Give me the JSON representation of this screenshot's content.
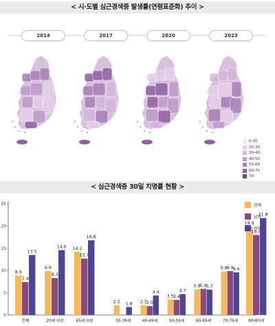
{
  "titles": {
    "map_title": "< 시·도별 심근경색증 발생률(연령표준화) 추이 >",
    "chart_title": "< 심근경색증 30일 치명률 현황 >"
  },
  "maps": {
    "years": [
      "2014",
      "2017",
      "2020",
      "2023"
    ],
    "legend": [
      {
        "label": "0-20",
        "color": "#f1e7f3"
      },
      {
        "label": "20-30",
        "color": "#e3cfe7"
      },
      {
        "label": "30-40",
        "color": "#d3b6da"
      },
      {
        "label": "40-50",
        "color": "#bf9bc9"
      },
      {
        "label": "50-60",
        "color": "#a87fb6"
      },
      {
        "label": "60-70",
        "color": "#8e61a0"
      },
      {
        "label": "70-",
        "color": "#6f4183"
      }
    ]
  },
  "colors": {
    "total": "#f5b95a",
    "male": "#8b4a7e",
    "female": "#4b4795"
  },
  "chart_data": {
    "type": "bar",
    "categories": [
      "전체",
      "20세 이상",
      "65세 이상",
      "30-39세",
      "40-49세",
      "50-59세",
      "60-69세",
      "70-79세",
      "80세이상"
    ],
    "series": [
      {
        "name": "전체",
        "values": [
          8.9,
          9.9,
          14.2,
          2.2,
          2.2,
          3.5,
          5.8,
          9.8,
          19.9
        ]
      },
      {
        "name": "남자",
        "values": [
          7.4,
          8.3,
          12.7,
          null,
          2.0,
          3.4,
          5.9,
          9.9,
          18.0
        ]
      },
      {
        "name": "여자",
        "values": [
          13.5,
          14.6,
          16.8,
          1.8,
          4.4,
          4.7,
          5.7,
          9.6,
          21.8
        ]
      }
    ],
    "value_labels": [
      [
        "8.9",
        "9.9",
        "14.2",
        "2.2",
        "2.2",
        "3.5",
        "5.8",
        "9.8",
        "19.9"
      ],
      [
        "7.4",
        "8.3",
        "12.7",
        "",
        "2.0",
        "3.4",
        "5.9",
        "9.9",
        "18.0"
      ],
      [
        "13.5",
        "14.6",
        "16.8",
        "1.8",
        "4.4",
        "4.7",
        "5.7",
        "9.6",
        "21.8"
      ]
    ],
    "y_ticks": [
      "0",
      "5",
      "10",
      "15",
      "20",
      "25"
    ],
    "ylim": [
      0,
      25
    ]
  }
}
